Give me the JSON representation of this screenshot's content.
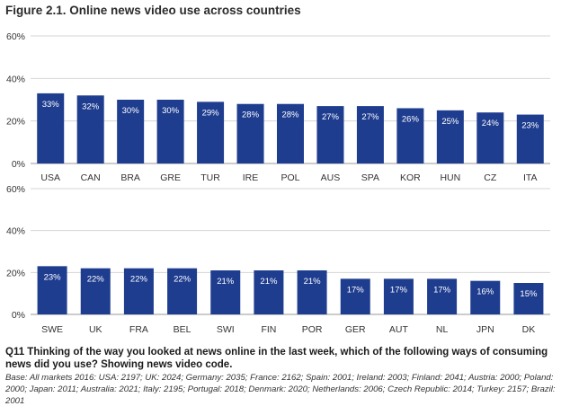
{
  "figure": {
    "title": "Figure 2.1. Online news video use across countries",
    "question": "Q11 Thinking of the way you looked at news online in the last week, which of the following ways of consuming news did you use? Showing news video code.",
    "base": "Base: All markets 2016: USA: 2197; UK: 2024; Germany: 2035; France: 2162; Spain: 2001; Ireland: 2003; Finland: 2041; Austria: 2000; Poland: 2000; Japan: 2011; Australia: 2021; Italy: 2195; Portugal: 2018; Denmark: 2020; Netherlands: 2006; Czech Republic: 2014; Turkey: 2157; Brazil: 2001"
  },
  "colors": {
    "bar": "#1f3d8f",
    "grid": "#d4d4d4",
    "axis": "#999999"
  },
  "chart_data": [
    {
      "type": "bar",
      "categories": [
        "USA",
        "CAN",
        "BRA",
        "GRE",
        "TUR",
        "IRE",
        "POL",
        "AUS",
        "SPA",
        "KOR",
        "HUN",
        "CZ",
        "ITA"
      ],
      "values": [
        33,
        32,
        30,
        30,
        29,
        28,
        28,
        27,
        27,
        26,
        25,
        24,
        23
      ],
      "data_labels": [
        "33%",
        "32%",
        "30%",
        "30%",
        "29%",
        "28%",
        "28%",
        "27%",
        "27%",
        "26%",
        "25%",
        "24%",
        "23%"
      ],
      "yticks": [
        "0%",
        "20%",
        "40%",
        "60%"
      ],
      "ylim": [
        0,
        60
      ],
      "grid": true
    },
    {
      "type": "bar",
      "categories": [
        "SWE",
        "UK",
        "FRA",
        "BEL",
        "SWI",
        "FIN",
        "POR",
        "GER",
        "AUT",
        "NL",
        "JPN",
        "DK"
      ],
      "values": [
        23,
        22,
        22,
        22,
        21,
        21,
        21,
        17,
        17,
        17,
        16,
        15
      ],
      "data_labels": [
        "23%",
        "22%",
        "22%",
        "22%",
        "21%",
        "21%",
        "21%",
        "17%",
        "17%",
        "17%",
        "16%",
        "15%"
      ],
      "yticks": [
        "0%",
        "20%",
        "40%",
        "60%"
      ],
      "ylim": [
        0,
        60
      ],
      "grid": true
    }
  ]
}
